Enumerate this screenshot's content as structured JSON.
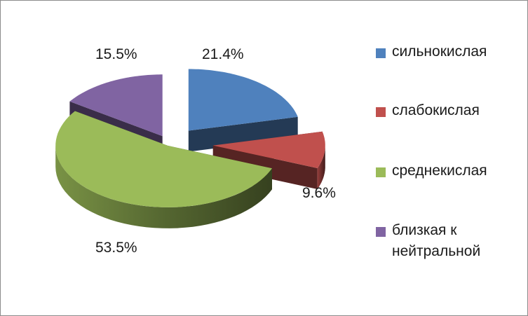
{
  "chart_data": {
    "type": "pie",
    "title": "",
    "categories": [
      "сильнокислая",
      "слабокислая",
      "среднекислая",
      "близкая к нейтральной"
    ],
    "values": [
      21.4,
      9.6,
      53.5,
      15.5
    ],
    "labels": [
      "21.4%",
      "9.6%",
      "53.5%",
      "15.5%"
    ],
    "colors": [
      "#4f81bd",
      "#c0504d",
      "#9bbb59",
      "#8064a2"
    ],
    "legend_position": "right",
    "exploded": true,
    "three_d": true
  }
}
